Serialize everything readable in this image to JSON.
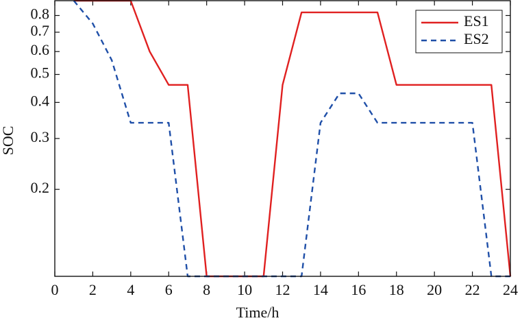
{
  "chart_data": {
    "type": "line",
    "x_label": "Time/h",
    "y_label": "SOC",
    "x": [
      0,
      1,
      2,
      3,
      4,
      5,
      6,
      7,
      8,
      9,
      10,
      11,
      12,
      13,
      14,
      15,
      16,
      17,
      18,
      19,
      20,
      21,
      22,
      23,
      24
    ],
    "series": [
      {
        "name": "ES1",
        "color": "#e02020",
        "dash": "solid",
        "values": [
          null,
          0.9,
          0.9,
          0.9,
          0.9,
          0.6,
          0.46,
          0.46,
          0.1,
          0.1,
          0.1,
          0.1,
          0.46,
          0.82,
          0.82,
          0.82,
          0.82,
          0.82,
          0.46,
          0.46,
          0.46,
          0.46,
          0.46,
          0.46,
          0.1
        ]
      },
      {
        "name": "ES2",
        "color": "#1f4fa8",
        "dash": "dashed",
        "values": [
          null,
          0.9,
          0.75,
          0.56,
          0.34,
          0.34,
          0.34,
          0.1,
          0.1,
          0.1,
          0.1,
          0.1,
          0.1,
          0.1,
          0.34,
          0.43,
          0.43,
          0.34,
          0.34,
          0.34,
          0.34,
          0.34,
          0.34,
          0.1,
          0.1
        ]
      }
    ],
    "xlim": [
      0,
      24
    ],
    "xticks": [
      0,
      2,
      4,
      6,
      8,
      10,
      12,
      14,
      16,
      18,
      20,
      22,
      24
    ],
    "ylim": [
      0.1,
      0.9
    ],
    "yticks": [
      0.2,
      0.3,
      0.4,
      0.5,
      0.6,
      0.7,
      0.8
    ],
    "log_y": true,
    "legend": "top-right"
  }
}
